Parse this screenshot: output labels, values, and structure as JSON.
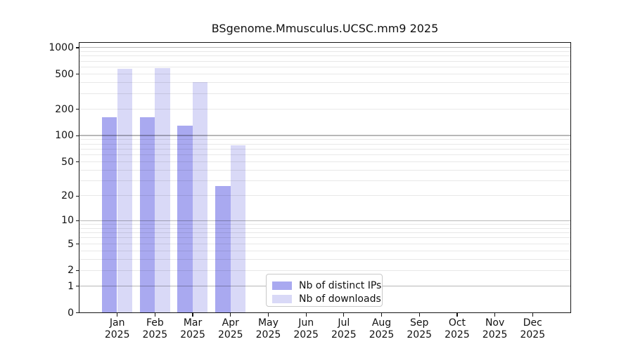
{
  "chart_data": {
    "type": "bar",
    "title": "BSgenome.Mmusculus.UCSC.mm9 2025",
    "x_categories": [
      "Jan",
      "Feb",
      "Mar",
      "Apr",
      "May",
      "Jun",
      "Jul",
      "Aug",
      "Sep",
      "Oct",
      "Nov",
      "Dec"
    ],
    "x_year": "2025",
    "series": [
      {
        "name": "Nb of distinct IPs",
        "color": "#a9a9f0",
        "values": [
          163,
          162,
          130,
          26,
          0,
          0,
          0,
          0,
          0,
          0,
          0,
          0
        ]
      },
      {
        "name": "Nb of downloads",
        "color": "#d9d9f7",
        "values": [
          574,
          590,
          402,
          78,
          0,
          0,
          0,
          0,
          0,
          0,
          0,
          0
        ]
      }
    ],
    "y_ticks": [
      0,
      1,
      2,
      5,
      10,
      20,
      50,
      100,
      200,
      500,
      1000
    ],
    "gridlines": {
      "major": [
        1,
        10,
        100,
        1000
      ],
      "minor": [
        2,
        3,
        4,
        5,
        6,
        7,
        8,
        9,
        20,
        30,
        40,
        50,
        60,
        70,
        80,
        90,
        200,
        300,
        400,
        500,
        600,
        700,
        800,
        900
      ]
    },
    "scale": "log1p",
    "ylim": [
      0,
      1135
    ],
    "grid": true,
    "legend_position": "bottom-center",
    "axis_color": "#151515",
    "background_color": "#ffffff"
  }
}
